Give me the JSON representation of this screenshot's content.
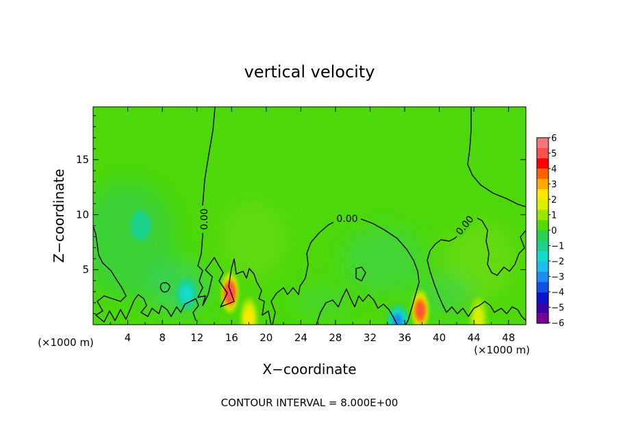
{
  "chart_data": {
    "type": "heatmap",
    "title": "vertical velocity",
    "xlabel": "X−coordinate",
    "ylabel": "Z−coordinate",
    "x_unit": "(×1000 m)",
    "x_unit_right": "(×1000 m)",
    "footnote": "CONTOUR INTERVAL = 8.000E+00",
    "xlim": [
      0,
      50
    ],
    "ylim": [
      0,
      19.8
    ],
    "x_ticks": [
      4,
      8,
      12,
      16,
      20,
      24,
      28,
      32,
      36,
      40,
      44,
      48
    ],
    "y_ticks": [
      5,
      10,
      15
    ],
    "colorbar": {
      "min": -6,
      "max": 6,
      "tick_labels": [
        "6",
        "5",
        "4",
        "3",
        "2",
        "1",
        "0",
        "−1",
        "−2",
        "−3",
        "−4",
        "−5",
        "−6"
      ],
      "colors": [
        "#f07878",
        "#ff5050",
        "#ff0000",
        "#ff6400",
        "#ffaa00",
        "#ffe600",
        "#dcf000",
        "#96e600",
        "#50dc00",
        "#28d250",
        "#1ed28c",
        "#14dcc8",
        "#1ebef0",
        "#1e8cf0",
        "#1450e6",
        "#0a14c8",
        "#3c00aa",
        "#780096"
      ]
    },
    "contour_labels": [
      "0.00",
      "0.00",
      "0.00"
    ],
    "features": [
      {
        "kind": "max",
        "x": 15.8,
        "z": 2.9,
        "value": 5.2
      },
      {
        "kind": "max",
        "x": 37.8,
        "z": 1.3,
        "value": 5.0
      },
      {
        "kind": "max",
        "x": 18.0,
        "z": 0.6,
        "value": 2.5
      },
      {
        "kind": "max",
        "x": 44.5,
        "z": 0.6,
        "value": 2.0
      },
      {
        "kind": "min",
        "x": 35.2,
        "z": 0.4,
        "value": -3.0
      },
      {
        "kind": "min",
        "x": 10.8,
        "z": 2.8,
        "value": -1.6
      },
      {
        "kind": "min",
        "x": 5.5,
        "z": 9.0,
        "value": -0.8
      }
    ]
  }
}
